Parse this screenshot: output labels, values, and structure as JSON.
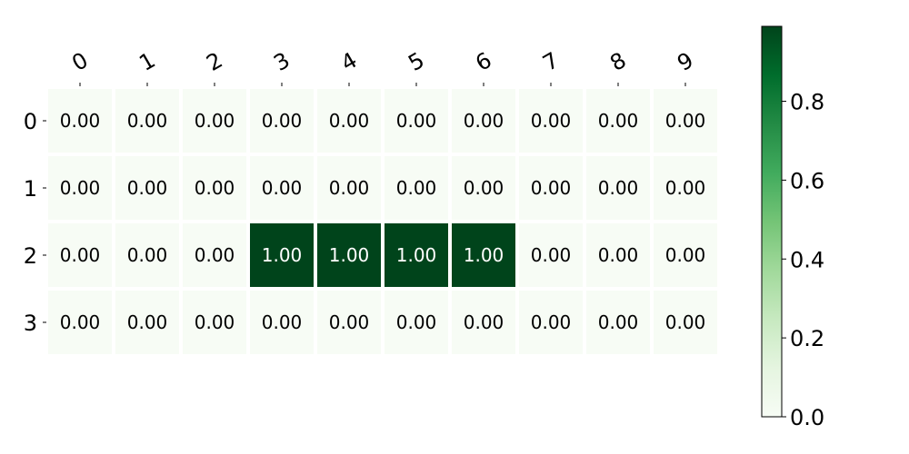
{
  "chart_data": {
    "type": "heatmap",
    "x_tick_labels": [
      "0",
      "1",
      "2",
      "3",
      "4",
      "5",
      "6",
      "7",
      "8",
      "9"
    ],
    "y_tick_labels": [
      "0",
      "1",
      "2",
      "3"
    ],
    "values": [
      [
        0,
        0,
        0,
        0,
        0,
        0,
        0,
        0,
        0,
        0
      ],
      [
        0,
        0,
        0,
        0,
        0,
        0,
        0,
        0,
        0,
        0
      ],
      [
        0,
        0,
        0,
        1,
        1,
        1,
        1,
        0,
        0,
        0
      ],
      [
        0,
        0,
        0,
        0,
        0,
        0,
        0,
        0,
        0,
        0
      ]
    ],
    "cell_labels": [
      [
        "0.00",
        "0.00",
        "0.00",
        "0.00",
        "0.00",
        "0.00",
        "0.00",
        "0.00",
        "0.00",
        "0.00"
      ],
      [
        "0.00",
        "0.00",
        "0.00",
        "0.00",
        "0.00",
        "0.00",
        "0.00",
        "0.00",
        "0.00",
        "0.00"
      ],
      [
        "0.00",
        "0.00",
        "0.00",
        "1.00",
        "1.00",
        "1.00",
        "1.00",
        "0.00",
        "0.00",
        "0.00"
      ],
      [
        "0.00",
        "0.00",
        "0.00",
        "0.00",
        "0.00",
        "0.00",
        "0.00",
        "0.00",
        "0.00",
        "0.00"
      ]
    ],
    "colormap": "Greens",
    "vmin": 0,
    "vmax": 1,
    "colorbar": {
      "tick_values": [
        0,
        0.2,
        0.4,
        0.6,
        0.8
      ],
      "tick_labels": [
        "0.0",
        "0.2",
        "0.4",
        "0.6",
        "0.8"
      ]
    },
    "x_axis_position": "top",
    "grid": false,
    "colors": {
      "low": "#f7fcf5",
      "high": "#00441b",
      "text_on_low": "#000000",
      "text_on_high": "#ffffff"
    }
  }
}
